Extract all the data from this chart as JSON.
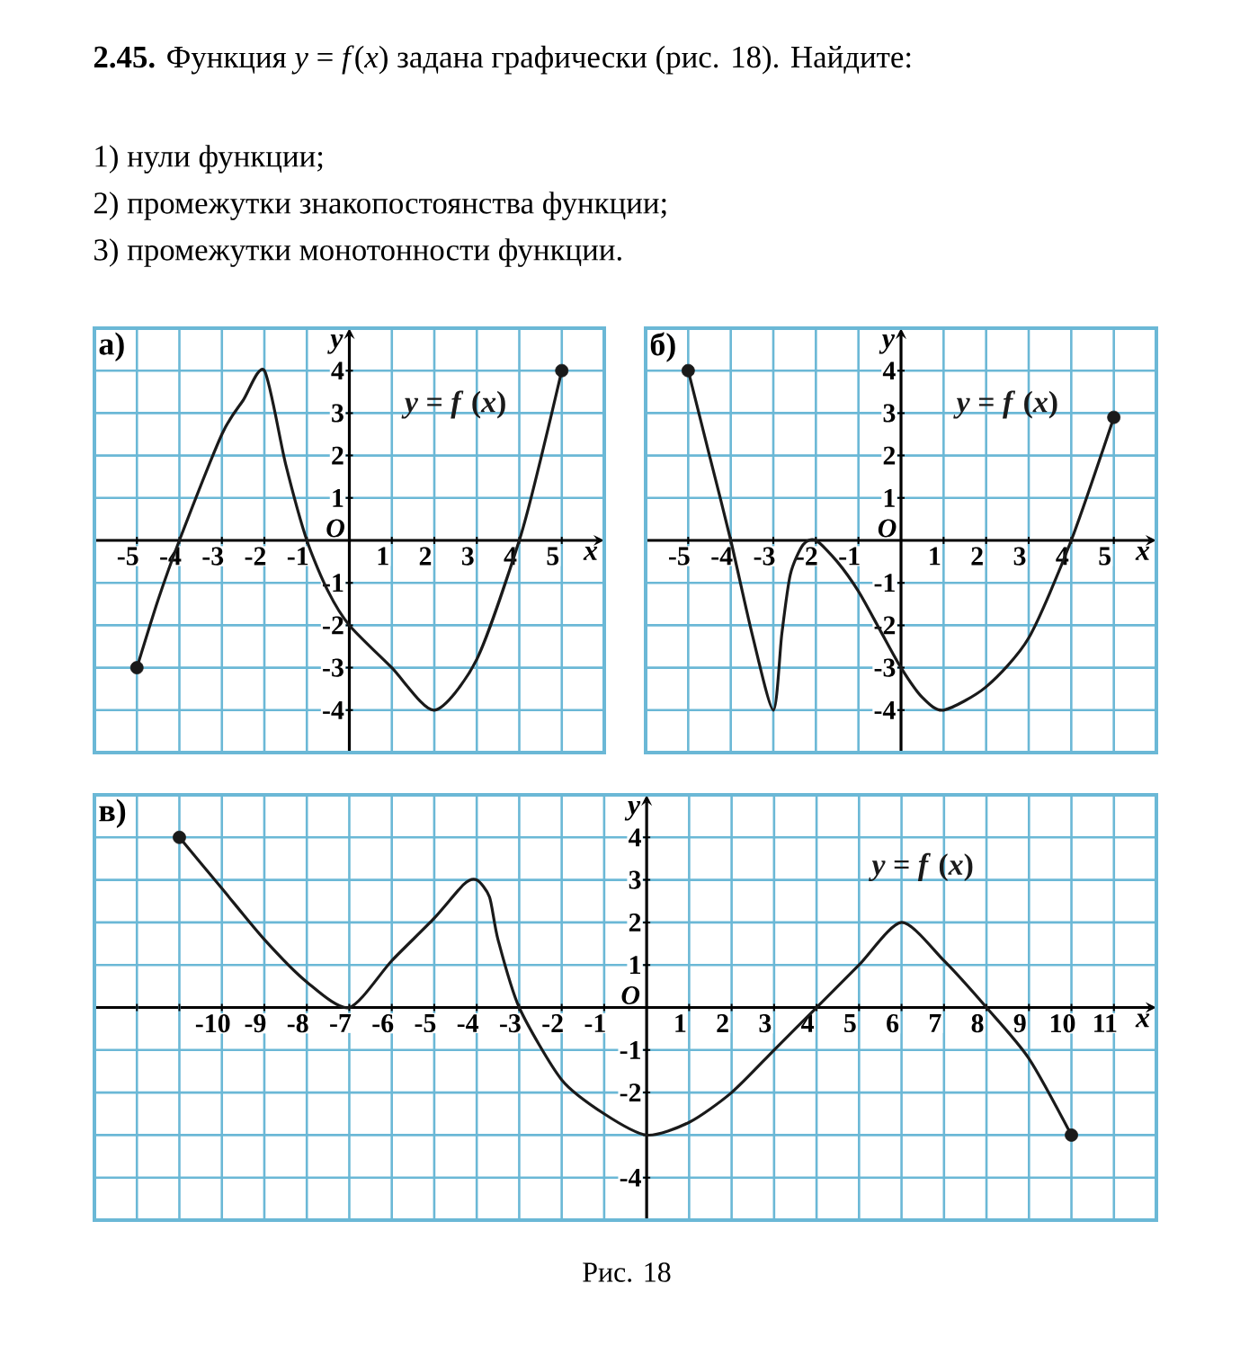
{
  "chart_data": [
    {
      "type": "line",
      "title": "а)",
      "xlabel": "x",
      "ylabel": "y",
      "grid": true,
      "annotations": [
        "**2.45.** Функция *y* = *f*(*x*) задана графически (рис. 18). Найдите:",
        "1) нули функции;",
        "2) промежутки знакопостоянства функции;",
        "3) промежутки монотонности функции.",
        "O"
      ],
      "xlim": [
        -6,
        6
      ],
      "ylim": [
        -5,
        5
      ],
      "xticks": [
        -5,
        -4,
        -3,
        -2,
        -1,
        1,
        2,
        3,
        4,
        5
      ],
      "yticks": [
        -4,
        -3,
        -2,
        -1,
        1,
        2,
        3,
        4
      ],
      "series": [
        {
          "name": "*y* = *f* (*x*)",
          "color": "#1a1a1a",
          "marker": "none",
          "x": [
            -5,
            -4.5,
            -4,
            -3,
            -2.5,
            -2,
            -1.5,
            -1,
            -0.5,
            0,
            1,
            2,
            3,
            4,
            4.5,
            5
          ],
          "values": [
            -3,
            -1.4,
            0,
            2.5,
            3.3,
            4,
            1.8,
            0,
            -1.2,
            -2,
            -3,
            -4,
            -2.8,
            0,
            1.9,
            4
          ]
        },
        {
          "type": "scatter",
          "color": "#1a1a1a",
          "marker": "circle",
          "x": [
            -5,
            5
          ],
          "values": [
            -3,
            4
          ]
        }
      ]
    },
    {
      "type": "line",
      "title": "б)",
      "xlabel": "x",
      "ylabel": "y",
      "grid": true,
      "annotations": [
        "O"
      ],
      "xlim": [
        -6,
        6
      ],
      "ylim": [
        -5,
        5
      ],
      "xticks": [
        -5,
        -4,
        -3,
        -2,
        -1,
        1,
        2,
        3,
        4,
        5
      ],
      "yticks": [
        -4,
        -3,
        -2,
        -1,
        1,
        2,
        3,
        4
      ],
      "series": [
        {
          "name": "*y* = *f* (*x*)",
          "color": "#1a1a1a",
          "marker": "none",
          "x": [
            -5,
            -4.5,
            -4,
            -3.5,
            -3,
            -2.8,
            -2.6,
            -2.3,
            -2,
            -1.5,
            -1,
            -0.5,
            0,
            0.5,
            1,
            2,
            3,
            4,
            5
          ],
          "values": [
            4,
            2,
            0,
            -2.2,
            -4,
            -2.2,
            -0.8,
            -0.1,
            0,
            -0.5,
            -1.2,
            -2.1,
            -3,
            -3.7,
            -4,
            -3.45,
            -2.3,
            0,
            2.9
          ]
        },
        {
          "type": "scatter",
          "color": "#1a1a1a",
          "marker": "circle",
          "x": [
            -5,
            5
          ],
          "values": [
            4,
            2.9
          ]
        }
      ]
    },
    {
      "type": "line",
      "title": "в)",
      "xlabel": "x",
      "ylabel": "y",
      "grid": true,
      "annotations": [
        "Рис. 18",
        "O"
      ],
      "xlim": [
        -13,
        12
      ],
      "ylim": [
        -5,
        5
      ],
      "xticks": [
        {
          "value": -12,
          "label": null
        },
        {
          "value": -11,
          "label": null
        },
        -10,
        -9,
        -8,
        -7,
        -6,
        -5,
        -4,
        -3,
        -2,
        -1,
        1,
        2,
        3,
        4,
        5,
        6,
        7,
        8,
        9,
        10,
        11
      ],
      "yticks": [
        -4,
        {
          "value": -3,
          "label": null
        },
        -2,
        -1,
        1,
        2,
        3,
        4
      ],
      "series": [
        {
          "name": "*y* = *f* (*x*)",
          "color": "#1a1a1a",
          "marker": "none",
          "x": [
            -11,
            -10,
            -9,
            -8,
            -7,
            -6,
            -5,
            -4.3,
            -4,
            -3.7,
            -3.5,
            -3,
            -2,
            -1,
            0,
            1,
            2,
            3,
            4,
            5,
            6,
            7,
            8,
            9,
            10
          ],
          "values": [
            4,
            2.8,
            1.6,
            0.6,
            0,
            1.1,
            2.1,
            2.9,
            3,
            2.6,
            1.6,
            0,
            -1.7,
            -2.5,
            -3,
            -2.7,
            -2,
            -1,
            0,
            1,
            2,
            1.1,
            0,
            -1.2,
            -3
          ]
        },
        {
          "type": "scatter",
          "color": "#1a1a1a",
          "marker": "circle",
          "x": [
            -11,
            10
          ],
          "values": [
            4,
            -3
          ]
        }
      ]
    }
  ]
}
